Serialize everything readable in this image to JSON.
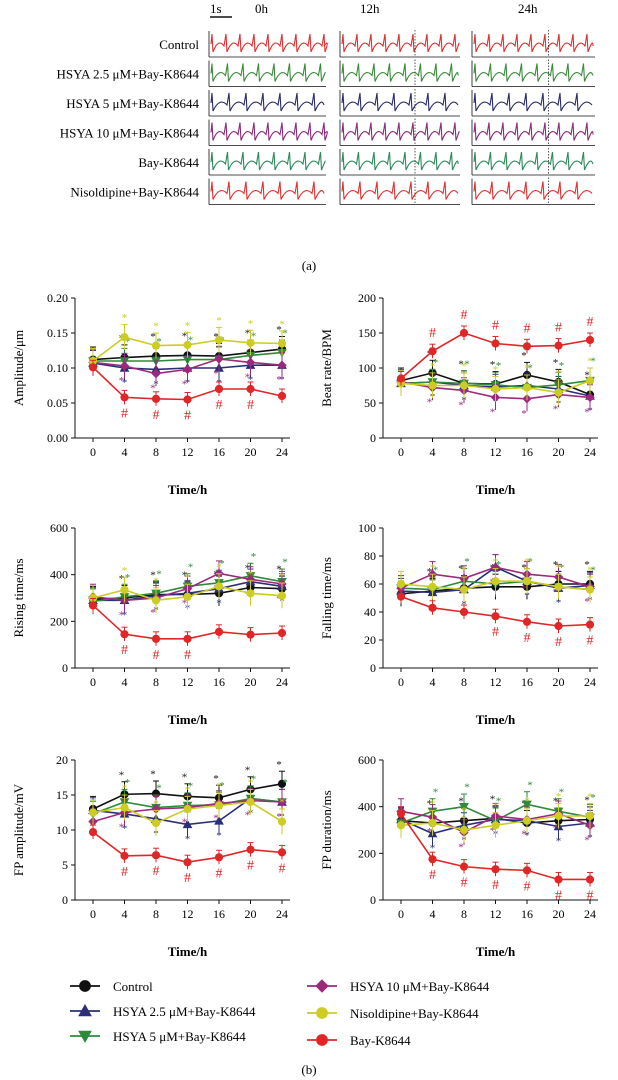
{
  "traces": {
    "scale_label": "1s",
    "time_labels": [
      "0h",
      "12h",
      "24h"
    ],
    "rows": [
      "Control",
      "HSYA 2.5 μM+Bay-K8644",
      "HSYA 5 μM+Bay-K8644",
      "HSYA 10 μM+Bay-K8644",
      "Bay-K8644",
      "Nisoldipine+Bay-K8644"
    ],
    "row_colors": [
      "#e03030",
      "#3a8a3a",
      "#2a2a6a",
      "#8a2a7a",
      "#2a8a5a",
      "#e03030"
    ],
    "panel_label": "(a)"
  },
  "panel_b_label": "(b)",
  "colors": {
    "Control": "#111111",
    "HSYA 2.5 μM+Bay-K8644": "#2a2f7a",
    "HSYA 5 μM+Bay-K8644": "#2e8b3a",
    "HSYA 10 μM+Bay-K8644": "#9b2a7d",
    "Nisoldipine+Bay-K8644": "#cccc22",
    "Bay-K8644": "#e02626"
  },
  "legend": [
    {
      "name": "Control",
      "marker": "circle"
    },
    {
      "name": "HSYA 2.5 μM+Bay-K8644",
      "marker": "triangle-up"
    },
    {
      "name": "HSYA 5 μM+Bay-K8644",
      "marker": "triangle-down"
    },
    {
      "name": "HSYA 10 μM+Bay-K8644",
      "marker": "diamond"
    },
    {
      "name": "Nisoldipine+Bay-K8644",
      "marker": "circle"
    },
    {
      "name": "Bay-K8644",
      "marker": "circle"
    }
  ],
  "chart_data": [
    {
      "type": "line",
      "ylabel": "Amplitude/μm",
      "xlabel": "Time/h",
      "x": [
        0,
        4,
        8,
        12,
        16,
        20,
        24
      ],
      "ylim": [
        0,
        0.2
      ],
      "yticks": [
        "0.00",
        "0.05",
        "0.10",
        "0.15",
        "0.20"
      ],
      "series": [
        {
          "name": "Control",
          "values": [
            0.112,
            0.115,
            0.117,
            0.118,
            0.117,
            0.122,
            0.127
          ]
        },
        {
          "name": "HSYA 2.5 μM+Bay-K8644",
          "values": [
            0.107,
            0.1,
            0.098,
            0.1,
            0.1,
            0.104,
            0.104
          ]
        },
        {
          "name": "HSYA 5 μM+Bay-K8644",
          "values": [
            0.11,
            0.11,
            0.11,
            0.112,
            0.112,
            0.118,
            0.122
          ]
        },
        {
          "name": "HSYA 10 μM+Bay-K8644",
          "values": [
            0.108,
            0.103,
            0.092,
            0.098,
            0.113,
            0.108,
            0.104
          ]
        },
        {
          "name": "Nisoldipine+Bay-K8644",
          "values": [
            0.11,
            0.144,
            0.132,
            0.133,
            0.14,
            0.136,
            0.135
          ]
        },
        {
          "name": "Bay-K8644",
          "values": [
            0.101,
            0.058,
            0.056,
            0.055,
            0.07,
            0.07,
            0.06
          ]
        }
      ],
      "hash_points": [
        1,
        2,
        3,
        4,
        5
      ]
    },
    {
      "type": "line",
      "ylabel": "Beat rate/BPM",
      "xlabel": "Time/h",
      "x": [
        0,
        4,
        8,
        12,
        16,
        20,
        24
      ],
      "ylim": [
        0,
        200
      ],
      "yticks": [
        "0",
        "50",
        "100",
        "150",
        "200"
      ],
      "series": [
        {
          "name": "Control",
          "values": [
            82,
            93,
            78,
            77,
            90,
            80,
            62
          ]
        },
        {
          "name": "HSYA 2.5 μM+Bay-K8644",
          "values": [
            78,
            80,
            75,
            73,
            75,
            70,
            60
          ]
        },
        {
          "name": "HSYA 5 μM+Bay-K8644",
          "values": [
            78,
            80,
            78,
            76,
            72,
            76,
            82
          ]
        },
        {
          "name": "HSYA 10 μM+Bay-K8644",
          "values": [
            80,
            72,
            68,
            58,
            56,
            62,
            58
          ]
        },
        {
          "name": "Nisoldipine+Bay-K8644",
          "values": [
            78,
            75,
            75,
            70,
            72,
            65,
            82
          ]
        },
        {
          "name": "Bay-K8644",
          "values": [
            85,
            124,
            150,
            135,
            131,
            132,
            140
          ]
        }
      ],
      "hash_points": [
        1,
        2,
        3,
        4,
        5,
        6
      ]
    },
    {
      "type": "line",
      "ylabel": "Rising time/ms",
      "xlabel": "Time/h",
      "x": [
        0,
        4,
        8,
        12,
        16,
        20,
        24
      ],
      "ylim": [
        0,
        600
      ],
      "yticks": [
        "0",
        "200",
        "400",
        "600"
      ],
      "series": [
        {
          "name": "Control",
          "values": [
            295,
            300,
            315,
            315,
            320,
            345,
            340
          ]
        },
        {
          "name": "HSYA 2.5 μM+Bay-K8644",
          "values": [
            290,
            290,
            310,
            320,
            340,
            370,
            350
          ]
        },
        {
          "name": "HSYA 5 μM+Bay-K8644",
          "values": [
            285,
            305,
            320,
            350,
            365,
            395,
            370
          ]
        },
        {
          "name": "HSYA 10 μM+Bay-K8644",
          "values": [
            305,
            290,
            300,
            340,
            405,
            380,
            360
          ]
        },
        {
          "name": "Nisoldipine+Bay-K8644",
          "values": [
            300,
            335,
            290,
            305,
            350,
            320,
            310
          ]
        },
        {
          "name": "Bay-K8644",
          "values": [
            268,
            145,
            125,
            125,
            155,
            143,
            150
          ]
        }
      ],
      "hash_points": [
        1,
        2,
        3
      ]
    },
    {
      "type": "line",
      "ylabel": "Falling time/ms",
      "xlabel": "Time/h",
      "x": [
        0,
        4,
        8,
        12,
        16,
        20,
        24
      ],
      "ylim": [
        0,
        100
      ],
      "yticks": [
        "0",
        "20",
        "40",
        "60",
        "80",
        "100"
      ],
      "series": [
        {
          "name": "Control",
          "values": [
            53,
            55,
            57,
            58,
            58,
            60,
            60
          ]
        },
        {
          "name": "HSYA 2.5 μM+Bay-K8644",
          "values": [
            55,
            54,
            56,
            72,
            62,
            57,
            59
          ]
        },
        {
          "name": "HSYA 5 μM+Bay-K8644",
          "values": [
            57,
            56,
            62,
            60,
            62,
            58,
            56
          ]
        },
        {
          "name": "HSYA 10 μM+Bay-K8644",
          "values": [
            57,
            67,
            64,
            72,
            67,
            65,
            58
          ]
        },
        {
          "name": "Nisoldipine+Bay-K8644",
          "values": [
            60,
            58,
            56,
            62,
            62,
            58,
            56
          ]
        },
        {
          "name": "Bay-K8644",
          "values": [
            51,
            43,
            40,
            37,
            33,
            30,
            31
          ]
        }
      ],
      "hash_points": [
        3,
        4,
        5,
        6
      ]
    },
    {
      "type": "line",
      "ylabel": "FP amplitude/mV",
      "xlabel": "Time/h",
      "x": [
        0,
        4,
        8,
        12,
        16,
        20,
        24
      ],
      "ylim": [
        0,
        20
      ],
      "yticks": [
        "0",
        "5",
        "10",
        "15",
        "20"
      ],
      "series": [
        {
          "name": "Control",
          "values": [
            13.0,
            15.1,
            15.2,
            14.8,
            14.6,
            15.8,
            16.6
          ]
        },
        {
          "name": "HSYA 2.5 μM+Bay-K8644",
          "values": [
            12.8,
            12.3,
            11.6,
            10.8,
            11.3,
            14.5,
            14.0
          ]
        },
        {
          "name": "HSYA 5 μM+Bay-K8644",
          "values": [
            12.3,
            14.0,
            13.2,
            13.5,
            13.6,
            14.5,
            14.0
          ]
        },
        {
          "name": "HSYA 10 μM+Bay-K8644",
          "values": [
            11.2,
            12.5,
            13.0,
            13.2,
            13.8,
            14.2,
            14.0
          ]
        },
        {
          "name": "Nisoldipine+Bay-K8644",
          "values": [
            12.5,
            13.2,
            11.0,
            13.0,
            13.5,
            14.0,
            11.2
          ]
        },
        {
          "name": "Bay-K8644",
          "values": [
            9.7,
            6.3,
            6.4,
            5.4,
            6.1,
            7.2,
            6.8
          ]
        }
      ],
      "hash_points": [
        1,
        2,
        3,
        4,
        5,
        6
      ]
    },
    {
      "type": "line",
      "ylabel": "FP duration/ms",
      "xlabel": "Time/h",
      "x": [
        0,
        4,
        8,
        12,
        16,
        20,
        24
      ],
      "ylim": [
        0,
        600
      ],
      "yticks": [
        "0",
        "200",
        "400",
        "600"
      ],
      "series": [
        {
          "name": "Control",
          "values": [
            340,
            330,
            340,
            350,
            330,
            340,
            345
          ]
        },
        {
          "name": "HSYA 2.5 μM+Bay-K8644",
          "values": [
            345,
            285,
            320,
            345,
            340,
            315,
            330
          ]
        },
        {
          "name": "HSYA 5 μM+Bay-K8644",
          "values": [
            330,
            380,
            400,
            340,
            410,
            380,
            355
          ]
        },
        {
          "name": "HSYA 10 μM+Bay-K8644",
          "values": [
            380,
            355,
            290,
            360,
            345,
            370,
            320
          ]
        },
        {
          "name": "Nisoldipine+Bay-K8644",
          "values": [
            320,
            330,
            300,
            320,
            340,
            360,
            360
          ]
        },
        {
          "name": "Bay-K8644",
          "values": [
            370,
            175,
            143,
            132,
            127,
            88,
            88
          ]
        }
      ],
      "hash_points": [
        1,
        2,
        3,
        4,
        5,
        6
      ]
    }
  ]
}
